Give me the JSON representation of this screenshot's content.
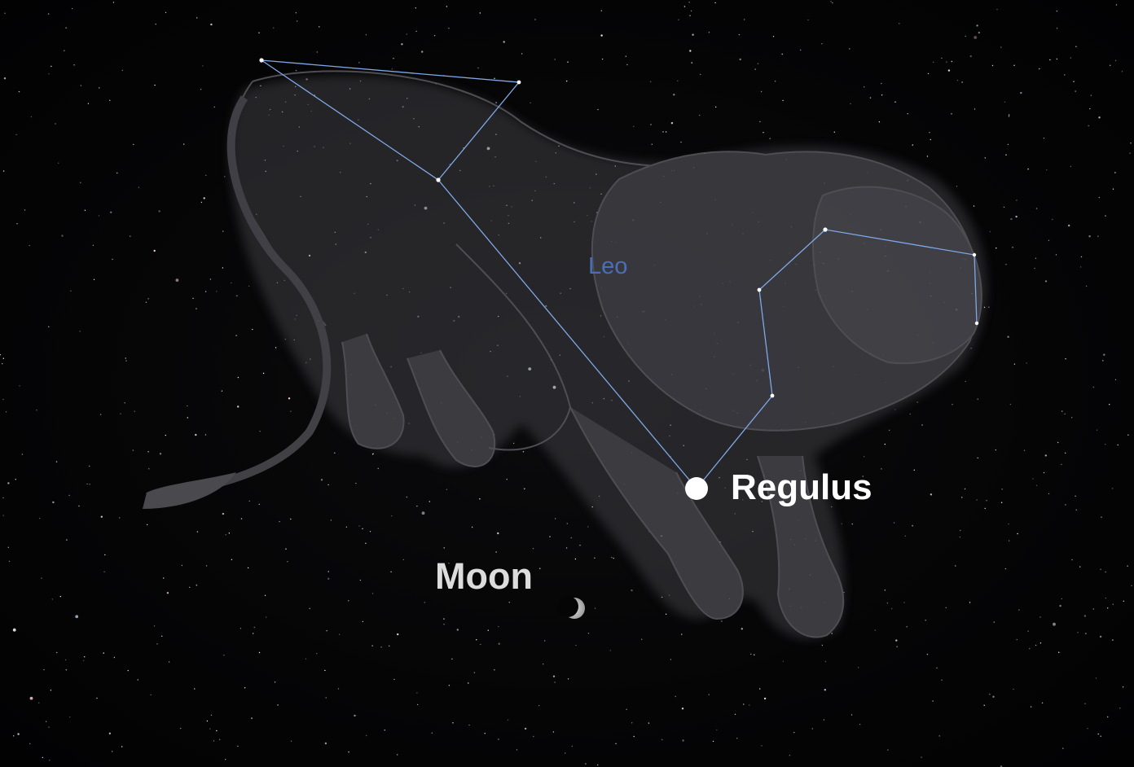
{
  "sky_map": {
    "constellation": {
      "name": "Leo",
      "line_color": "#7fa8e6",
      "label_color": "#4a6fb5"
    },
    "objects": [
      {
        "name": "Regulus",
        "kind": "star",
        "color": "#ffffff"
      },
      {
        "name": "Moon",
        "kind": "moon",
        "phase": "crescent",
        "color": "#dcdcdc"
      }
    ],
    "background": "#050506",
    "artwork": "lion figure"
  }
}
